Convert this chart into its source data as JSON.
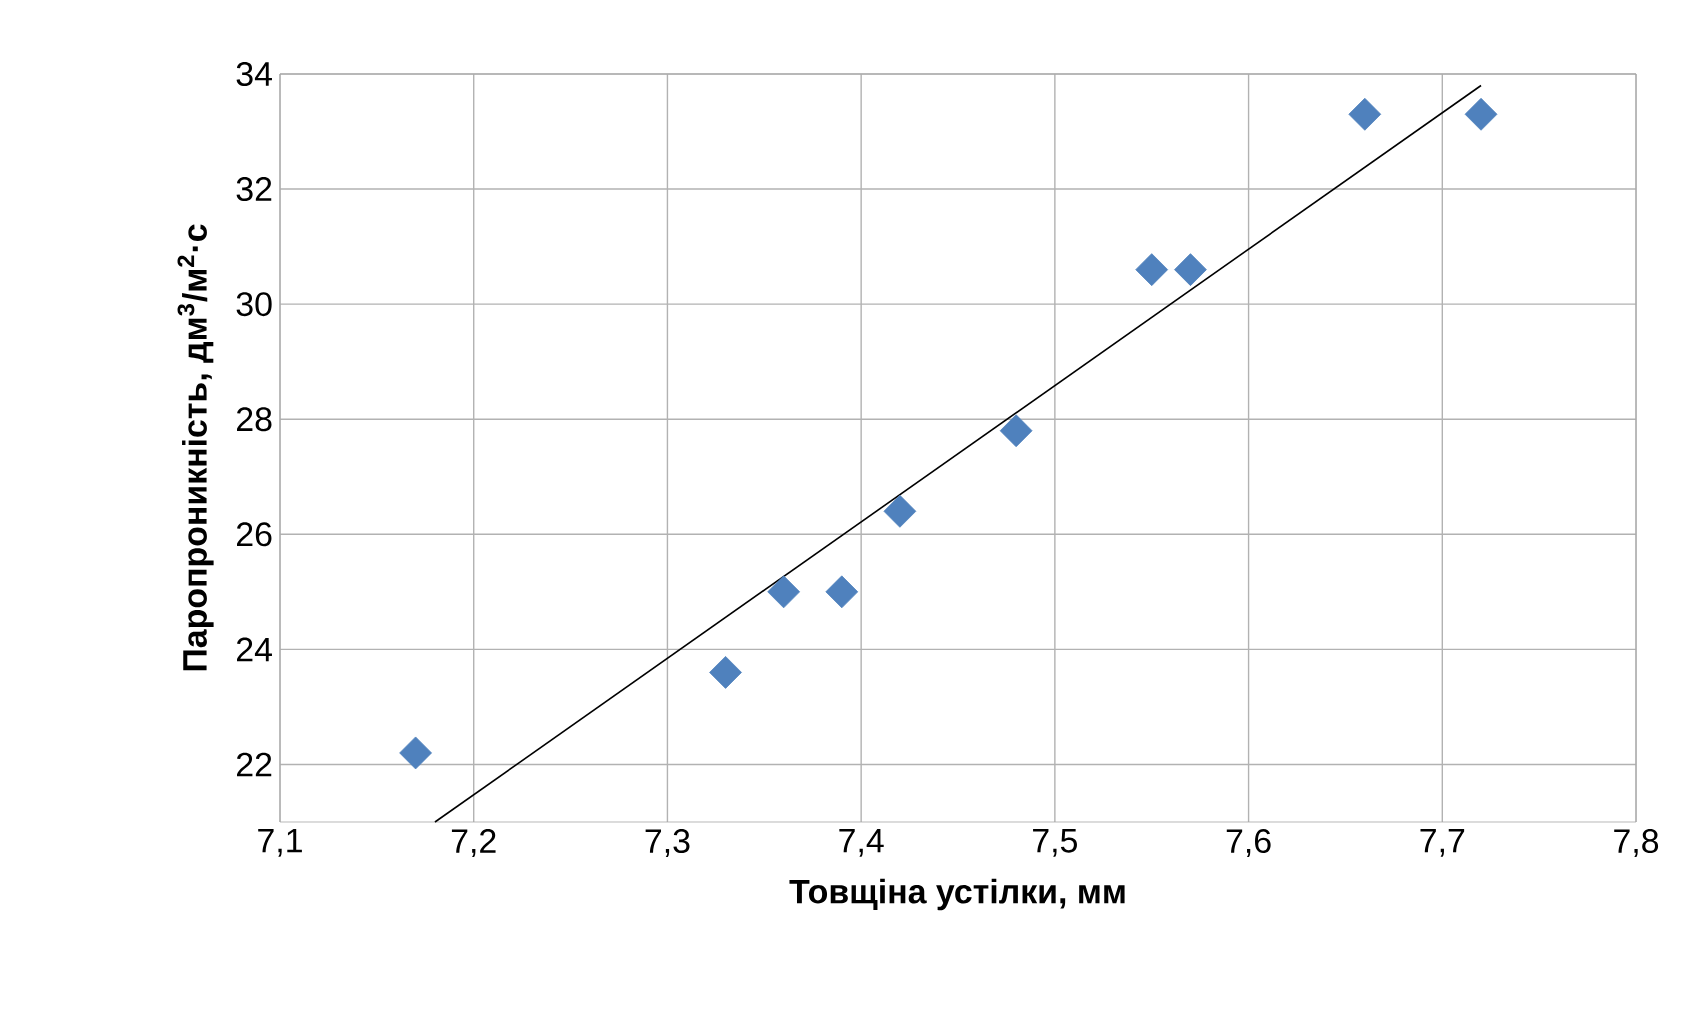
{
  "chart_data": {
    "type": "scatter",
    "xlabel": "Товщіна устілки, мм",
    "ylabel": "Паропроникність, дм$^{3}$/м$^{2}$·с",
    "xlim": [
      7.1,
      7.8
    ],
    "ylim": [
      21,
      34
    ],
    "xticks": [
      {
        "value": 7.1,
        "label": "7,1"
      },
      {
        "value": 7.2,
        "label": "7,2"
      },
      {
        "value": 7.3,
        "label": "7,3"
      },
      {
        "value": 7.4,
        "label": "7,4"
      },
      {
        "value": 7.5,
        "label": "7,5"
      },
      {
        "value": 7.6,
        "label": "7,6"
      },
      {
        "value": 7.7,
        "label": "7,7"
      },
      {
        "value": 7.8,
        "label": "7,8"
      }
    ],
    "yticks": [
      22,
      24,
      26,
      28,
      30,
      32,
      34
    ],
    "grid": true,
    "marker": "diamond",
    "series": [
      {
        "color": "#4f81bd",
        "x": [
          7.17,
          7.33,
          7.36,
          7.39,
          7.42,
          7.48,
          7.55,
          7.57,
          7.66,
          7.72
        ],
        "values": [
          22.2,
          23.6,
          25.0,
          25.0,
          26.4,
          27.8,
          30.6,
          30.6,
          33.3,
          33.3
        ]
      },
      {
        "type": "line",
        "color": "#000000",
        "marker": "none",
        "x": [
          7.18,
          7.72
        ],
        "values": [
          21.0,
          33.8
        ]
      }
    ]
  }
}
